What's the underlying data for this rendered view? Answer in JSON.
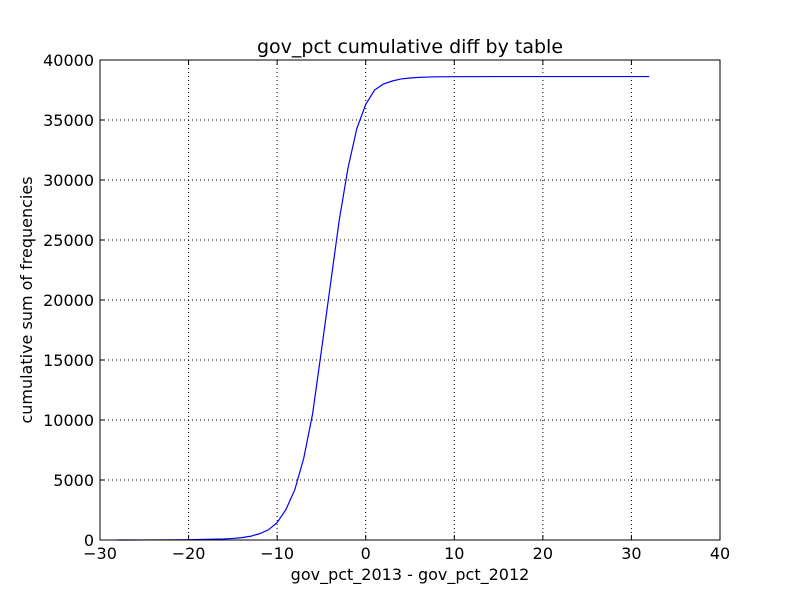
{
  "chart_data": {
    "type": "line",
    "title": "gov_pct cumulative diff by table",
    "xlabel": "gov_pct_2013 - gov_pct_2012",
    "ylabel": "cumulative sum of frequencies",
    "xlim": [
      -30,
      40
    ],
    "ylim": [
      0,
      40000
    ],
    "xticks": [
      -30,
      -20,
      -10,
      0,
      10,
      20,
      30,
      40
    ],
    "xtick_labels": [
      "−30",
      "−20",
      "−10",
      "0",
      "10",
      "20",
      "30",
      "40"
    ],
    "yticks": [
      0,
      5000,
      10000,
      15000,
      20000,
      25000,
      30000,
      35000,
      40000
    ],
    "ytick_labels": [
      "0",
      "5000",
      "10000",
      "15000",
      "20000",
      "25000",
      "30000",
      "35000",
      "40000"
    ],
    "grid": true,
    "series": [
      {
        "color": "#0000ff",
        "x": [
          -28,
          -25,
          -22,
          -20,
          -18,
          -16,
          -15,
          -14,
          -13,
          -12,
          -11,
          -10,
          -9,
          -8,
          -7,
          -6,
          -5,
          -4,
          -3,
          -2,
          -1,
          0,
          1,
          2,
          3,
          4,
          5,
          6,
          7,
          8,
          10,
          15,
          20,
          25,
          32
        ],
        "y": [
          0,
          5,
          15,
          25,
          50,
          90,
          130,
          200,
          310,
          520,
          840,
          1450,
          2550,
          4200,
          6800,
          10500,
          15800,
          21200,
          26600,
          31000,
          34300,
          36300,
          37500,
          38000,
          38250,
          38420,
          38500,
          38550,
          38580,
          38600,
          38610,
          38620,
          38620,
          38620,
          38620
        ]
      }
    ]
  }
}
